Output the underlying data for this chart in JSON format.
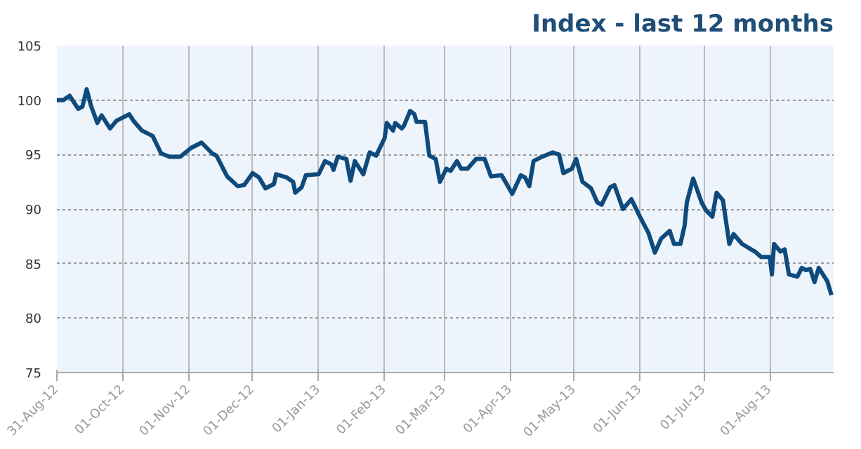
{
  "chart_data": {
    "type": "line",
    "title": "Index - last 12 months",
    "x": [
      "2012-08-31",
      "2012-09-03",
      "2012-09-06",
      "2012-09-10",
      "2012-09-12",
      "2012-09-14",
      "2012-09-16",
      "2012-09-19",
      "2012-09-21",
      "2012-09-25",
      "2012-09-28",
      "2012-10-04",
      "2012-10-06",
      "2012-10-10",
      "2012-10-15",
      "2012-10-19",
      "2012-10-23",
      "2012-10-28",
      "2012-11-02",
      "2012-11-07",
      "2012-11-12",
      "2012-11-14",
      "2012-11-19",
      "2012-11-24",
      "2012-11-27",
      "2012-12-01",
      "2012-12-04",
      "2012-12-07",
      "2012-12-11",
      "2012-12-12",
      "2012-12-17",
      "2012-12-20",
      "2012-12-21",
      "2012-12-24",
      "2012-12-26",
      "2013-01-01",
      "2013-01-04",
      "2013-01-07",
      "2013-01-08",
      "2013-01-10",
      "2013-01-14",
      "2013-01-16",
      "2013-01-18",
      "2013-01-22",
      "2013-01-25",
      "2013-01-28",
      "2013-02-01",
      "2013-02-02",
      "2013-02-05",
      "2013-02-06",
      "2013-02-09",
      "2013-02-10",
      "2013-02-13",
      "2013-02-15",
      "2013-02-16",
      "2013-02-20",
      "2013-02-22",
      "2013-02-25",
      "2013-02-27",
      "2013-03-02",
      "2013-03-04",
      "2013-03-07",
      "2013-03-09",
      "2013-03-12",
      "2013-03-16",
      "2013-03-20",
      "2013-03-23",
      "2013-03-28",
      "2013-04-02",
      "2013-04-06",
      "2013-04-08",
      "2013-04-10",
      "2013-04-12",
      "2013-04-16",
      "2013-04-21",
      "2013-04-24",
      "2013-04-26",
      "2013-04-30",
      "2013-05-02",
      "2013-05-05",
      "2013-05-09",
      "2013-05-12",
      "2013-05-14",
      "2013-05-18",
      "2013-05-20",
      "2013-05-24",
      "2013-05-28",
      "2013-06-01",
      "2013-06-05",
      "2013-06-08",
      "2013-06-11",
      "2013-06-15",
      "2013-06-17",
      "2013-06-20",
      "2013-06-22",
      "2013-06-23",
      "2013-06-26",
      "2013-06-30",
      "2013-07-02",
      "2013-07-05",
      "2013-07-07",
      "2013-07-10",
      "2013-07-13",
      "2013-07-15",
      "2013-07-19",
      "2013-07-25",
      "2013-07-28",
      "2013-08-01",
      "2013-08-02",
      "2013-08-03",
      "2013-08-06",
      "2013-08-08",
      "2013-08-10",
      "2013-08-14",
      "2013-08-16",
      "2013-08-18",
      "2013-08-20",
      "2013-08-22",
      "2013-08-24",
      "2013-08-28",
      "2013-08-30"
    ],
    "series": [
      {
        "color": "#0f4a7c",
        "values": [
          100,
          100,
          100.4,
          99.2,
          99.4,
          101,
          99.5,
          97.9,
          98.6,
          97.4,
          98.1,
          98.7,
          98.1,
          97.2,
          96.7,
          95.1,
          94.8,
          94.8,
          95.6,
          96.1,
          95.1,
          94.9,
          93.0,
          92.1,
          92.2,
          93.3,
          92.9,
          91.9,
          92.3,
          93.2,
          92.9,
          92.5,
          91.5,
          92.0,
          93.1,
          93.2,
          94.4,
          94.1,
          93.6,
          94.8,
          94.6,
          92.6,
          94.4,
          93.2,
          95.2,
          94.9,
          96.5,
          97.9,
          97.2,
          97.9,
          97.4,
          97.6,
          99.0,
          98.7,
          98.0,
          98.0,
          94.9,
          94.6,
          92.5,
          93.7,
          93.5,
          94.4,
          93.7,
          93.7,
          94.6,
          94.6,
          93.0,
          93.1,
          91.4,
          93.1,
          92.9,
          92.1,
          94.4,
          94.8,
          95.2,
          95.0,
          93.3,
          93.7,
          94.6,
          92.5,
          91.9,
          90.6,
          90.4,
          92.0,
          92.2,
          90.0,
          90.9,
          89.3,
          87.8,
          86.0,
          87.3,
          88.0,
          86.8,
          86.8,
          88.5,
          90.6,
          92.8,
          90.6,
          89.9,
          89.3,
          91.5,
          90.8,
          86.8,
          87.7,
          86.8,
          86.1,
          85.6,
          85.6,
          84.0,
          86.8,
          86.1,
          86.3,
          84.0,
          83.8,
          84.6,
          84.4,
          84.5,
          83.3,
          84.6,
          83.4,
          82.1
        ]
      }
    ],
    "xlim": [
      "2012-08-31",
      "2013-08-31"
    ],
    "xticks": [
      {
        "value": "2012-08-31",
        "label": "31-Aug-12"
      },
      {
        "value": "2012-10-01",
        "label": "01-Oct-12"
      },
      {
        "value": "2012-11-01",
        "label": "01-Nov-12"
      },
      {
        "value": "2012-12-01",
        "label": "01-Dec-12"
      },
      {
        "value": "2013-01-01",
        "label": "01-Jan-13"
      },
      {
        "value": "2013-02-01",
        "label": "01-Feb-13"
      },
      {
        "value": "2013-03-01",
        "label": "01-Mar-13"
      },
      {
        "value": "2013-04-01",
        "label": "01-Apr-13"
      },
      {
        "value": "2013-05-01",
        "label": "01-May-13"
      },
      {
        "value": "2013-06-01",
        "label": "01-Jun-13"
      },
      {
        "value": "2013-07-01",
        "label": "01-Jul-13"
      },
      {
        "value": "2013-08-01",
        "label": "01-Aug-13"
      }
    ],
    "ylim": [
      75,
      105
    ],
    "yticks": [
      75,
      80,
      85,
      90,
      95,
      100,
      105
    ],
    "grid": true,
    "marker": "none",
    "line_style": "solid"
  }
}
